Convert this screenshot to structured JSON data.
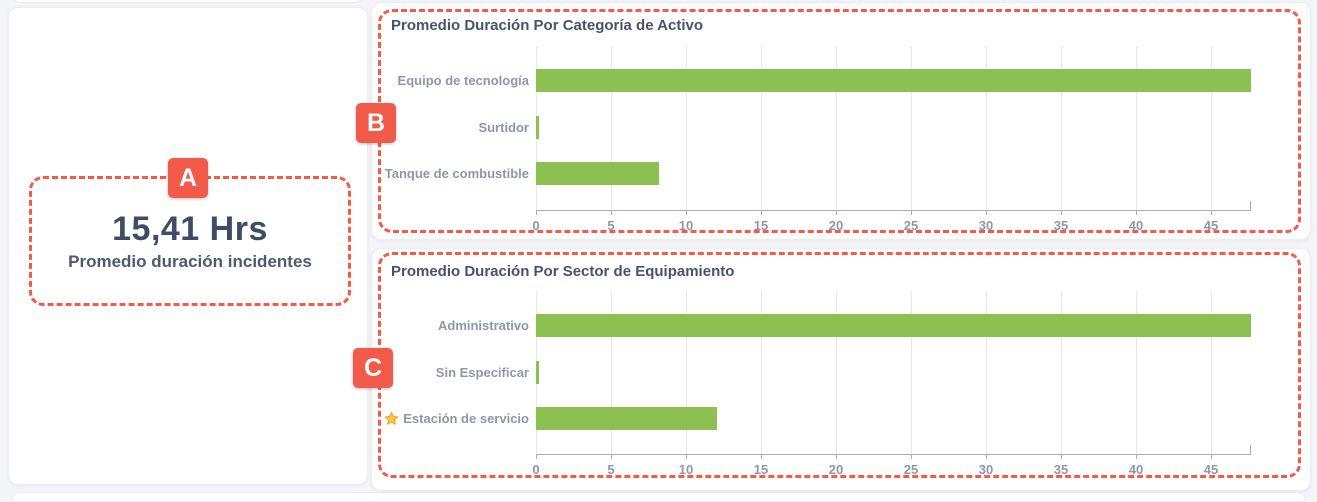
{
  "page": {
    "background": "#f4f5f8"
  },
  "annotations": {
    "accent_color": "#f25b4a",
    "labels": [
      {
        "id": "A"
      },
      {
        "id": "B"
      },
      {
        "id": "C"
      }
    ]
  },
  "kpi_card": {
    "value": "15,41 Hrs",
    "label": "Promedio duración incidentes"
  },
  "colors": {
    "bar_green": "#8cc152",
    "title_text": "#47536e",
    "axis_text": "#8e97a8"
  },
  "chart_data": [
    {
      "type": "bar",
      "orientation": "horizontal",
      "title": "Promedio Duración Por Categoría de Activo",
      "categories": [
        "Equipo de tecnología",
        "Surtidor",
        "Tanque de combustible"
      ],
      "values": [
        47.7,
        0.2,
        8.2
      ],
      "category_icons": [
        null,
        null,
        null
      ],
      "xticks": [
        0,
        5,
        10,
        15,
        20,
        25,
        30,
        35,
        40,
        45
      ],
      "xlim": [
        0,
        47.7
      ],
      "xlabel": "",
      "ylabel": "",
      "grid": true,
      "legend": "none",
      "bar_color": "#8cc152",
      "unit": "Hrs"
    },
    {
      "type": "bar",
      "orientation": "horizontal",
      "title": "Promedio Duración Por Sector de Equipamiento",
      "categories": [
        "Administrativo",
        "Sin Especificar",
        "Estación de servicio"
      ],
      "values": [
        47.7,
        0.2,
        12.1
      ],
      "category_icons": [
        null,
        null,
        "star-icon"
      ],
      "xticks": [
        0,
        5,
        10,
        15,
        20,
        25,
        30,
        35,
        40,
        45
      ],
      "xlim": [
        0,
        47.7
      ],
      "xlabel": "",
      "ylabel": "",
      "grid": true,
      "legend": "none",
      "bar_color": "#8cc152",
      "unit": "Hrs"
    }
  ]
}
